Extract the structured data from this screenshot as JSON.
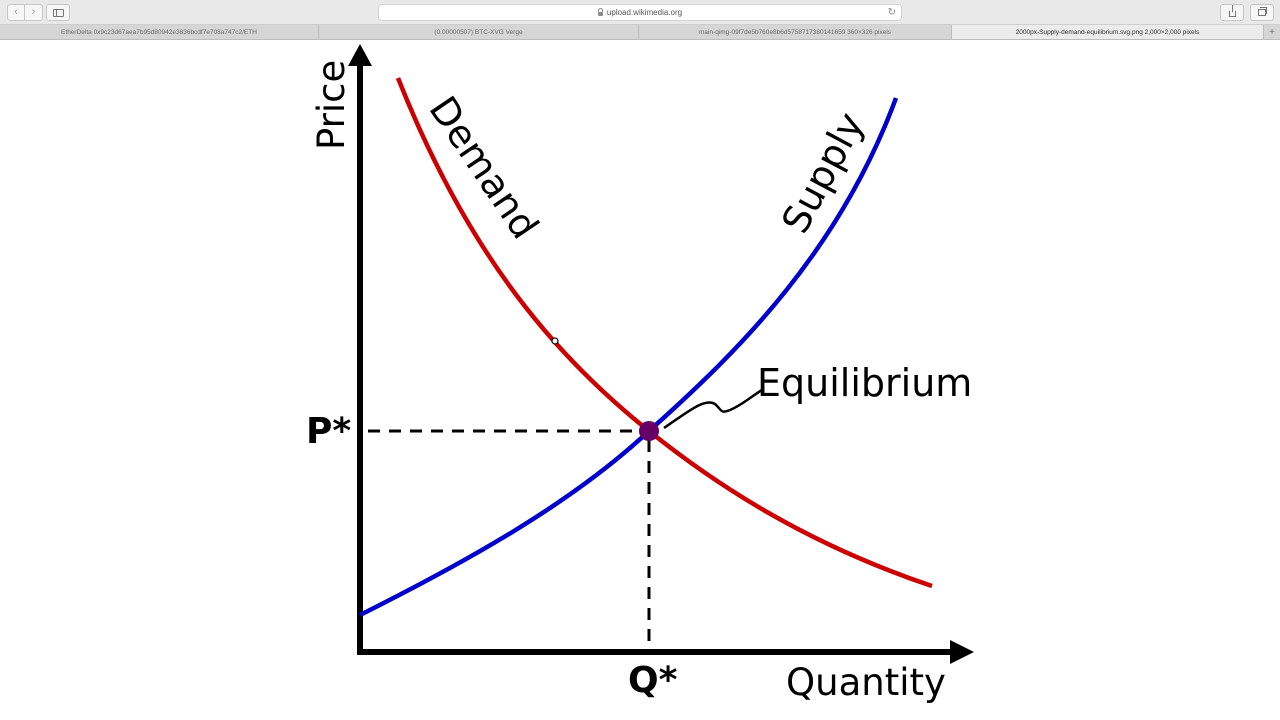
{
  "browser": {
    "address": "upload.wikimedia.org",
    "tabs": [
      {
        "label": "EtherDelta 0x9c23d67aea7b95d80942e3836bcdf7e708a747c2/ETH"
      },
      {
        "label": "(0.00000507) BTC-XVG Verge"
      },
      {
        "label": "main-qimg-09f7de5b760e8b6d5758717380141659 360×326 pixels"
      },
      {
        "label": "2000px-Supply-demand-equilibrium.svg.png 2,000×2,000 pixels"
      }
    ],
    "new_tab_glyph": "+",
    "back_glyph": "‹",
    "forward_glyph": "›",
    "reload_glyph": "↻"
  },
  "diagram": {
    "axis_y_label": "Price",
    "axis_x_label": "Quantity",
    "demand_label": "Demand",
    "supply_label": "Supply",
    "equilibrium_label": "Equilibrium",
    "p_star": "P*",
    "q_star": "Q*",
    "colors": {
      "demand": "#cc0000",
      "supply": "#0000cc",
      "equilibrium_point": "#660066",
      "axes": "#000000"
    }
  }
}
